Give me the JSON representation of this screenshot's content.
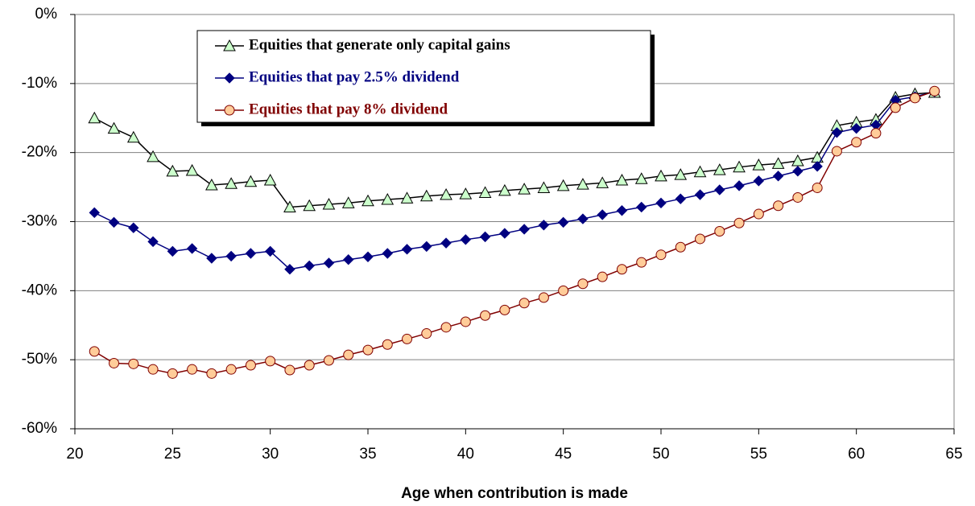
{
  "chart_data": {
    "type": "line",
    "xlabel": "Age when contribution is made",
    "x": [
      21,
      22,
      23,
      24,
      25,
      26,
      27,
      28,
      29,
      30,
      31,
      32,
      33,
      34,
      35,
      36,
      37,
      38,
      39,
      40,
      41,
      42,
      43,
      44,
      45,
      46,
      47,
      48,
      49,
      50,
      51,
      52,
      53,
      54,
      55,
      56,
      57,
      58,
      59,
      60,
      61,
      62,
      63,
      64
    ],
    "series": [
      {
        "name": "Equities that generate only capital gains",
        "color": "#000000",
        "marker": "triangle",
        "marker_fill": "#ccffcc",
        "values": [
          -15,
          -16.5,
          -17.8,
          -20.6,
          -22.7,
          -22.6,
          -24.7,
          -24.5,
          -24.2,
          -24.0,
          -27.9,
          -27.7,
          -27.5,
          -27.3,
          -27.0,
          -26.8,
          -26.6,
          -26.3,
          -26.1,
          -26.0,
          -25.8,
          -25.5,
          -25.3,
          -25.1,
          -24.8,
          -24.6,
          -24.4,
          -24.0,
          -23.8,
          -23.4,
          -23.2,
          -22.8,
          -22.5,
          -22.1,
          -21.8,
          -21.6,
          -21.2,
          -20.7,
          -16.1,
          -15.6,
          -15.2,
          -12.0,
          -11.5,
          -11.3
        ]
      },
      {
        "name": "Equities that pay 2.5% dividend",
        "color": "#000080",
        "marker": "diamond",
        "marker_fill": "#000080",
        "values": [
          -28.7,
          -30.1,
          -30.9,
          -32.9,
          -34.3,
          -33.9,
          -35.3,
          -35.0,
          -34.6,
          -34.3,
          -36.9,
          -36.4,
          -36.0,
          -35.5,
          -35.1,
          -34.6,
          -34.0,
          -33.6,
          -33.1,
          -32.6,
          -32.2,
          -31.7,
          -31.1,
          -30.5,
          -30.1,
          -29.6,
          -29.0,
          -28.4,
          -27.9,
          -27.3,
          -26.7,
          -26.1,
          -25.4,
          -24.8,
          -24.1,
          -23.4,
          -22.7,
          -22.0,
          -17.1,
          -16.5,
          -16.0,
          -12.4,
          -11.9,
          -11.2
        ]
      },
      {
        "name": "Equities that pay 8% dividend",
        "color": "#800000",
        "marker": "circle",
        "marker_fill": "#ffcc99",
        "values": [
          -48.8,
          -50.5,
          -50.6,
          -51.4,
          -52.0,
          -51.4,
          -52.0,
          -51.4,
          -50.8,
          -50.2,
          -51.5,
          -50.8,
          -50.1,
          -49.3,
          -48.6,
          -47.8,
          -47.0,
          -46.2,
          -45.3,
          -44.5,
          -43.6,
          -42.8,
          -41.8,
          -41.0,
          -40.0,
          -39.0,
          -38.0,
          -36.9,
          -35.9,
          -34.8,
          -33.7,
          -32.5,
          -31.4,
          -30.2,
          -28.9,
          -27.7,
          -26.5,
          -25.1,
          -19.8,
          -18.5,
          -17.2,
          -13.5,
          -12.1,
          -11.1
        ]
      }
    ],
    "xlim": [
      20,
      65
    ],
    "xticks": [
      20,
      25,
      30,
      35,
      40,
      45,
      50,
      55,
      60,
      65
    ],
    "ylim": [
      -60,
      0
    ],
    "yticks": [
      {
        "value": 0,
        "label": "0%"
      },
      {
        "value": -10,
        "label": "-10%"
      },
      {
        "value": -20,
        "label": "-20%"
      },
      {
        "value": -30,
        "label": "-30%"
      },
      {
        "value": -40,
        "label": "-40%"
      },
      {
        "value": -50,
        "label": "-50%"
      },
      {
        "value": -60,
        "label": "-60%"
      }
    ],
    "grid": true,
    "legend": "upper left"
  }
}
